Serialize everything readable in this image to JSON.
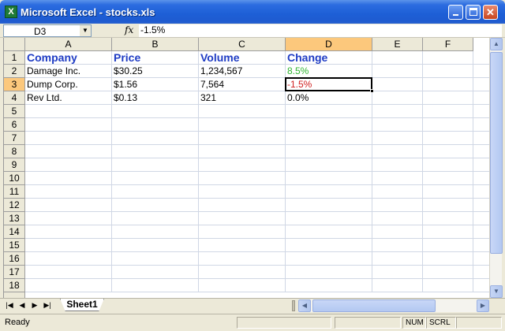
{
  "window": {
    "title": "Microsoft Excel - stocks.xls",
    "icon": "excel-icon",
    "close_glyph": "✕"
  },
  "formula_bar": {
    "name_box": "D3",
    "fx_label": "fx",
    "formula": "-1.5%"
  },
  "columns": [
    "A",
    "B",
    "C",
    "D",
    "E",
    "F"
  ],
  "active_column": "D",
  "active_row": 3,
  "row_numbers": [
    1,
    2,
    3,
    4,
    5,
    6,
    7,
    8,
    9,
    10,
    11,
    12,
    13,
    14,
    15,
    16,
    17,
    18
  ],
  "table": {
    "headers": [
      "Company",
      "Price",
      "Volume",
      "Change"
    ],
    "rows": [
      [
        "Damage Inc.",
        "$30.25",
        "1,234,567",
        "8.5%"
      ],
      [
        "Dump Corp.",
        "$1.56",
        "7,564",
        "-1.5%"
      ],
      [
        "Rev Ltd.",
        "$0.13",
        "321",
        "0.0%"
      ]
    ]
  },
  "colors": {
    "header_text": "#1f3cc4",
    "positive": "#2fb52f",
    "negative": "#d02020",
    "active_header": "#fcc87c"
  },
  "sheets": {
    "active": "Sheet1"
  },
  "status": {
    "mode": "Ready",
    "num": "NUM",
    "scrl": "SCRL"
  }
}
